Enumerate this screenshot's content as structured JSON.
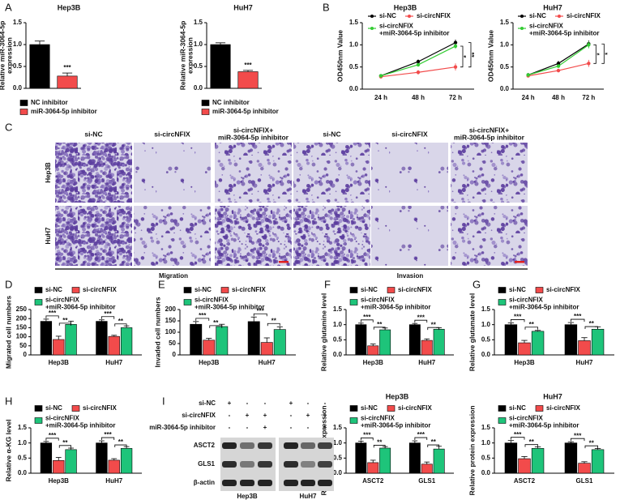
{
  "panel_labels": [
    "A",
    "B",
    "C",
    "D",
    "E",
    "F",
    "G",
    "H",
    "I"
  ],
  "chart_data": [
    {
      "type": "bar",
      "title": "Hep3B",
      "y_label": "Relative miR-3064-5p\nexpression",
      "series": [
        {
          "name": "NC inhibitor",
          "color": "#000000",
          "values": [
            1.0
          ],
          "errors": [
            0.08
          ]
        },
        {
          "name": "miR-3064-5p inhibitor",
          "color": "#f24b4b",
          "values": [
            0.28
          ],
          "errors": [
            0.07
          ]
        }
      ],
      "annotations": [
        "***"
      ],
      "ylim": [
        0,
        1.5
      ],
      "yticks": [
        {
          "value": 0,
          "label": "0.0"
        },
        {
          "value": 0.5,
          "label": "0.5"
        },
        {
          "value": 1,
          "label": "1.0"
        },
        {
          "value": 1.5,
          "label": "1.5"
        }
      ]
    },
    {
      "type": "bar",
      "title": "HuH7",
      "y_label": "Relative miR-3064-5p\nexpression",
      "series": [
        {
          "name": "NC inhibitor",
          "color": "#000000",
          "values": [
            1.0
          ],
          "errors": [
            0.04
          ]
        },
        {
          "name": "miR-3064-5p inhibitor",
          "color": "#f24b4b",
          "values": [
            0.38
          ],
          "errors": [
            0.03
          ]
        }
      ],
      "annotations": [
        "***"
      ],
      "ylim": [
        0,
        1.5
      ],
      "yticks": [
        {
          "value": 0,
          "label": "0.0"
        },
        {
          "value": 0.5,
          "label": "0.5"
        },
        {
          "value": 1,
          "label": "1.0"
        },
        {
          "value": 1.5,
          "label": "1.5"
        }
      ]
    },
    {
      "type": "line",
      "title": "Hep3B",
      "y_label": "OD450nm Value",
      "categories": [
        "24 h",
        "48 h",
        "72 h"
      ],
      "series": [
        {
          "name": "si-NC",
          "color": "#000000",
          "values": [
            0.3,
            0.62,
            1.05
          ],
          "errors": [
            0.02,
            0.05,
            0.07
          ]
        },
        {
          "name": "si-circNFIX",
          "color": "#f24b4b",
          "values": [
            0.28,
            0.38,
            0.5
          ],
          "errors": [
            0.02,
            0.05,
            0.08
          ]
        },
        {
          "name": "si-circNFIX\n+miR-3064-5p inhibitor",
          "color": "#33cc33",
          "values": [
            0.3,
            0.55,
            0.97
          ],
          "errors": [
            0.02,
            0.04,
            0.06
          ]
        }
      ],
      "annotations": [
        "*",
        "**"
      ],
      "ylim": [
        0,
        1.5
      ],
      "yticks": [
        {
          "value": 0,
          "label": "0.0"
        },
        {
          "value": 0.5,
          "label": "0.5"
        },
        {
          "value": 1,
          "label": "1.0"
        },
        {
          "value": 1.5,
          "label": "1.5"
        }
      ]
    },
    {
      "type": "line",
      "title": "HuH7",
      "y_label": "OD450nm Value",
      "categories": [
        "24 h",
        "48 h",
        "72 h"
      ],
      "series": [
        {
          "name": "si-NC",
          "color": "#000000",
          "values": [
            0.32,
            0.58,
            1.02
          ],
          "errors": [
            0.02,
            0.06,
            0.08
          ]
        },
        {
          "name": "si-circNFIX",
          "color": "#f24b4b",
          "values": [
            0.3,
            0.42,
            0.58
          ],
          "errors": [
            0.02,
            0.04,
            0.08
          ]
        },
        {
          "name": "si-circNFIX\n+miR-3064-5p inhibitor",
          "color": "#33cc33",
          "values": [
            0.32,
            0.52,
            1.0
          ],
          "errors": [
            0.02,
            0.04,
            0.08
          ]
        }
      ],
      "annotations": [
        "*",
        "*"
      ],
      "ylim": [
        0,
        1.5
      ],
      "yticks": [
        {
          "value": 0,
          "label": "0.0"
        },
        {
          "value": 0.5,
          "label": "0.5"
        },
        {
          "value": 1,
          "label": "1.0"
        },
        {
          "value": 1.5,
          "label": "1.5"
        }
      ]
    },
    {
      "type": "bar",
      "y_label": "Migrated cell numbers",
      "categories": [
        "Hep3B",
        "HuH7"
      ],
      "series": [
        {
          "name": "si-NC",
          "color": "#000000",
          "values": [
            185,
            185
          ],
          "errors": [
            12,
            8
          ]
        },
        {
          "name": "si-circNFIX",
          "color": "#f24b4b",
          "values": [
            85,
            102
          ],
          "errors": [
            18,
            6
          ]
        },
        {
          "name": "si-circNFIX\n+miR-3064-5p inhibitor",
          "color": "#1ec47a",
          "values": [
            168,
            150
          ],
          "errors": [
            18,
            10
          ]
        }
      ],
      "annotations": [
        [
          "***",
          "**"
        ],
        [
          "***",
          "**"
        ]
      ],
      "ylim": [
        0,
        250
      ],
      "yticks": [
        0,
        50,
        100,
        150,
        200,
        250
      ]
    },
    {
      "type": "bar",
      "y_label": "Invaded cell numbers",
      "categories": [
        "Hep3B",
        "HuH7"
      ],
      "series": [
        {
          "name": "si-NC",
          "color": "#000000",
          "values": [
            135,
            147
          ],
          "errors": [
            12,
            20
          ]
        },
        {
          "name": "si-circNFIX",
          "color": "#f24b4b",
          "values": [
            65,
            55
          ],
          "errors": [
            8,
            20
          ]
        },
        {
          "name": "si-circNFIX\n+miR-3064-5p inhibitor",
          "color": "#1ec47a",
          "values": [
            125,
            112
          ],
          "errors": [
            10,
            12
          ]
        }
      ],
      "annotations": [
        [
          "***",
          "**"
        ],
        [
          "***",
          "**"
        ]
      ],
      "ylim": [
        0,
        200
      ],
      "yticks": [
        0,
        50,
        100,
        150,
        200
      ]
    },
    {
      "type": "bar",
      "y_label": "Relative glutamine level",
      "categories": [
        "Hep3B",
        "HuH7"
      ],
      "series": [
        {
          "name": "si-NC",
          "color": "#000000",
          "values": [
            1.0,
            1.0
          ],
          "errors": [
            0.05,
            0.04
          ]
        },
        {
          "name": "si-circNFIX",
          "color": "#f24b4b",
          "values": [
            0.3,
            0.48
          ],
          "errors": [
            0.06,
            0.05
          ]
        },
        {
          "name": "si-circNFIX\n+miR-3064-5p inhibitor",
          "color": "#1ec47a",
          "values": [
            0.83,
            0.85
          ],
          "errors": [
            0.06,
            0.05
          ]
        }
      ],
      "annotations": [
        [
          "***",
          "**"
        ],
        [
          "***",
          "**"
        ]
      ],
      "ylim": [
        0,
        1.5
      ],
      "yticks": [
        {
          "value": 0,
          "label": "0.0"
        },
        {
          "value": 0.5,
          "label": "0.5"
        },
        {
          "value": 1,
          "label": "1.0"
        },
        {
          "value": 1.5,
          "label": "1.5"
        }
      ]
    },
    {
      "type": "bar",
      "y_label": "Relative glutamate level",
      "categories": [
        "Hep3B",
        "HuH7"
      ],
      "series": [
        {
          "name": "si-NC",
          "color": "#000000",
          "values": [
            1.0,
            1.0
          ],
          "errors": [
            0.06,
            0.07
          ]
        },
        {
          "name": "si-circNFIX",
          "color": "#f24b4b",
          "values": [
            0.4,
            0.47
          ],
          "errors": [
            0.08,
            0.1
          ]
        },
        {
          "name": "si-circNFIX\n+miR-3064-5p inhibitor",
          "color": "#1ec47a",
          "values": [
            0.78,
            0.85
          ],
          "errors": [
            0.03,
            0.08
          ]
        }
      ],
      "annotations": [
        [
          "***",
          "**"
        ],
        [
          "***",
          "**"
        ]
      ],
      "ylim": [
        0,
        1.5
      ],
      "yticks": [
        {
          "value": 0,
          "label": "0.0"
        },
        {
          "value": 0.5,
          "label": "0.5"
        },
        {
          "value": 1,
          "label": "1.0"
        },
        {
          "value": 1.5,
          "label": "1.5"
        }
      ]
    },
    {
      "type": "bar",
      "y_label": "Relative α-KG level",
      "categories": [
        "Hep3B",
        "HuH7"
      ],
      "series": [
        {
          "name": "si-NC",
          "color": "#000000",
          "values": [
            1.0,
            1.0
          ],
          "errors": [
            0.05,
            0.07
          ]
        },
        {
          "name": "si-circNFIX",
          "color": "#f24b4b",
          "values": [
            0.42,
            0.43
          ],
          "errors": [
            0.1,
            0.05
          ]
        },
        {
          "name": "si-circNFIX\n+miR-3064-5p inhibitor",
          "color": "#1ec47a",
          "values": [
            0.78,
            0.82
          ],
          "errors": [
            0.05,
            0.06
          ]
        }
      ],
      "annotations": [
        [
          "***",
          "**"
        ],
        [
          "***",
          "**"
        ]
      ],
      "ylim": [
        0,
        1.5
      ],
      "yticks": [
        {
          "value": 0,
          "label": "0.0"
        },
        {
          "value": 0.5,
          "label": "0.5"
        },
        {
          "value": 1,
          "label": "1.0"
        },
        {
          "value": 1.5,
          "label": "1.5"
        }
      ]
    },
    {
      "type": "bar",
      "title": "Hep3B",
      "y_label": "Relative protein expression",
      "categories": [
        "ASCT2",
        "GLS1"
      ],
      "series": [
        {
          "name": "si-NC",
          "color": "#000000",
          "values": [
            1.0,
            1.0
          ],
          "errors": [
            0.06,
            0.07
          ]
        },
        {
          "name": "si-circNFIX",
          "color": "#f24b4b",
          "values": [
            0.35,
            0.3
          ],
          "errors": [
            0.08,
            0.07
          ]
        },
        {
          "name": "si-circNFIX\n+miR-3064-5p inhibitor",
          "color": "#1ec47a",
          "values": [
            0.83,
            0.8
          ],
          "errors": [
            0.05,
            0.09
          ]
        }
      ],
      "annotations": [
        [
          "***",
          "**"
        ],
        [
          "***",
          "**"
        ]
      ],
      "ylim": [
        0,
        1.5
      ],
      "yticks": [
        {
          "value": 0,
          "label": "0.0"
        },
        {
          "value": 0.5,
          "label": "0.5"
        },
        {
          "value": 1,
          "label": "1.0"
        },
        {
          "value": 1.5,
          "label": "1.5"
        }
      ]
    },
    {
      "type": "bar",
      "title": "HuH7",
      "y_label": "Relative protein expression",
      "categories": [
        "ASCT2",
        "GLS1"
      ],
      "series": [
        {
          "name": "si-NC",
          "color": "#000000",
          "values": [
            1.0,
            1.0
          ],
          "errors": [
            0.08,
            0.04
          ]
        },
        {
          "name": "si-circNFIX",
          "color": "#f24b4b",
          "values": [
            0.48,
            0.33
          ],
          "errors": [
            0.07,
            0.05
          ]
        },
        {
          "name": "si-circNFIX\n+miR-3064-5p inhibitor",
          "color": "#1ec47a",
          "values": [
            0.82,
            0.78
          ],
          "errors": [
            0.05,
            0.04
          ]
        }
      ],
      "annotations": [
        [
          "***",
          "**"
        ],
        [
          "***",
          "**"
        ]
      ],
      "ylim": [
        0,
        1.5
      ],
      "yticks": [
        {
          "value": 0,
          "label": "0.0"
        },
        {
          "value": 0.5,
          "label": "0.5"
        },
        {
          "value": 1,
          "label": "1.0"
        },
        {
          "value": 1.5,
          "label": "1.5"
        }
      ]
    }
  ],
  "transwell": {
    "columns": [
      "si-NC",
      "si-circNFIX",
      "si-circNFIX+\nmiR-3064-5p inhibitor",
      "si-NC",
      "si-circNFIX",
      "si-circNFIX+\nmiR-3064-5p inhibitor"
    ],
    "rows": [
      "Hep3B",
      "HuH7"
    ],
    "groups": [
      "Migration",
      "Invasion"
    ]
  },
  "western_blot": {
    "conditions": [
      {
        "label": "si-NC",
        "signs": [
          "+",
          "-",
          "-",
          "+",
          "-",
          "-"
        ]
      },
      {
        "label": "si-circNFIX",
        "signs": [
          "-",
          "+",
          "+",
          "-",
          "+",
          "+"
        ]
      },
      {
        "label": "miR-3064-5p inhibitor",
        "signs": [
          "-",
          "-",
          "+",
          "-",
          "-",
          "+"
        ]
      }
    ],
    "proteins": [
      "ASCT2",
      "GLS1",
      "β-actin"
    ],
    "cell_lines": [
      "Hep3B",
      "HuH7"
    ]
  }
}
